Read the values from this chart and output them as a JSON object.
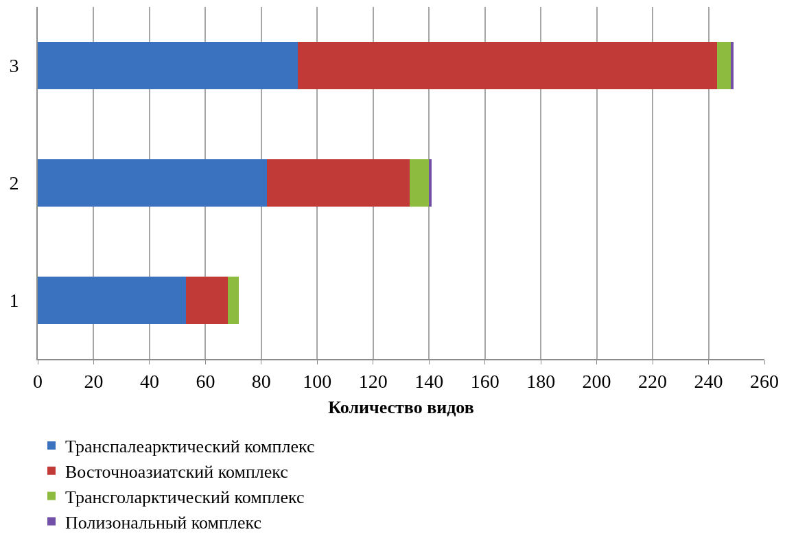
{
  "chart_data": {
    "type": "bar",
    "orientation": "horizontal",
    "stacked": true,
    "xlabel": "Количество видов",
    "categories": [
      "3",
      "2",
      "1"
    ],
    "series": [
      {
        "name": "Транспалеарктический комплекс",
        "color": "#3a72bf",
        "values": [
          93,
          82,
          53
        ]
      },
      {
        "name": "Восточноазиатский комплекс",
        "color": "#c23a37",
        "values": [
          150,
          51,
          15
        ]
      },
      {
        "name": "Трансголарктический комплекс",
        "color": "#8dbb3f",
        "values": [
          5,
          7,
          4
        ]
      },
      {
        "name": "Полизональный комплекс",
        "color": "#7350a8",
        "values": [
          1,
          1,
          0
        ]
      }
    ],
    "xlim": [
      0,
      260
    ],
    "xticks": [
      0,
      20,
      40,
      60,
      80,
      100,
      120,
      140,
      160,
      180,
      200,
      220,
      240,
      260
    ],
    "grid": "x",
    "legend": "bottom"
  }
}
